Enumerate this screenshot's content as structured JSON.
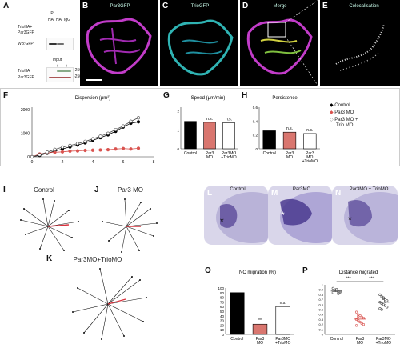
{
  "panels": {
    "A": {
      "label": "A",
      "ip_title": "IP:",
      "ip_cols": [
        "HA",
        "HA",
        "IgG"
      ],
      "row_labels": [
        "TrioHA+",
        "Par3GFP"
      ],
      "wb_label": "WB:GFP",
      "input_title": "Input",
      "input_signs": [
        "-",
        "+",
        "+"
      ],
      "input_rows": [
        "TrioHA",
        "Par3GFP"
      ],
      "markers": [
        "-250",
        "-250"
      ]
    },
    "B": {
      "label": "B",
      "title": "Par3GFP"
    },
    "C": {
      "label": "C",
      "title": "TrioGFP"
    },
    "D": {
      "label": "D",
      "title": "Merge"
    },
    "E": {
      "label": "E",
      "title": "Colocalisation"
    },
    "F": {
      "label": "F"
    },
    "G": {
      "label": "G"
    },
    "H": {
      "label": "H"
    },
    "I": {
      "label": "I",
      "title": "Control"
    },
    "J": {
      "label": "J",
      "title": "Par3 MO"
    },
    "K": {
      "label": "K",
      "title": "Par3MO+TrioMO"
    },
    "L": {
      "label": "L",
      "title": "Control",
      "star": "*"
    },
    "M": {
      "label": "M",
      "title": "Par3MO",
      "star": "*"
    },
    "N": {
      "label": "N",
      "title": "Par3MO + TrioMO",
      "star": "*"
    },
    "O": {
      "label": "O"
    },
    "P": {
      "label": "P"
    }
  },
  "legend_h": [
    {
      "text": "Control",
      "color": "#000000"
    },
    {
      "text": "Par3 MO",
      "color": "#d9534f"
    },
    {
      "text": "Par3 MO +",
      "color": "#888888"
    },
    {
      "text": "Trio MO",
      "color": "#888888"
    }
  ],
  "chart_data": [
    {
      "id": "F",
      "type": "line",
      "title": "Dispersion (μm²)",
      "xlabel": "",
      "ylabel": "",
      "x": [
        0,
        0.5,
        1,
        1.5,
        2,
        2.5,
        3,
        3.5,
        4,
        4.5,
        5,
        5.5,
        6,
        6.5,
        7
      ],
      "xticks": [
        "0",
        "2",
        "4",
        "6",
        "8"
      ],
      "yticks": [
        "0",
        "1000",
        "2000"
      ],
      "ylim": [
        0,
        2100
      ],
      "series": [
        {
          "values": [
            0,
            60,
            150,
            240,
            330,
            420,
            500,
            590,
            700,
            810,
            930,
            1080,
            1260,
            1420,
            1480
          ],
          "color": "#000000",
          "marker": "filled"
        },
        {
          "values": [
            0,
            120,
            170,
            190,
            210,
            240,
            250,
            270,
            280,
            290,
            300,
            330,
            350,
            330,
            360
          ],
          "color": "#d9534f",
          "marker": "filled"
        },
        {
          "values": [
            0,
            90,
            200,
            310,
            410,
            480,
            560,
            650,
            760,
            870,
            990,
            1150,
            1300,
            1500,
            1650
          ],
          "color": "#444444",
          "marker": "open"
        }
      ]
    },
    {
      "id": "G",
      "type": "bar",
      "title": "Speed (μm/min)",
      "categories": [
        "Control",
        "Par3 MO",
        "Par3MO +TrioMO"
      ],
      "values": [
        1.45,
        1.4,
        1.38
      ],
      "colors": [
        "#000000",
        "#d9766f",
        "#ffffff"
      ],
      "yticks": [
        "0",
        "1",
        "2"
      ],
      "ylim": [
        0,
        2.2
      ],
      "annotations": [
        "",
        "n.s.",
        "n.s."
      ]
    },
    {
      "id": "H",
      "type": "bar",
      "title": "Persistence",
      "categories": [
        "Control",
        "Par3 MO",
        "Par3 MO +TrioMO"
      ],
      "values": [
        0.26,
        0.24,
        0.22
      ],
      "colors": [
        "#000000",
        "#d9766f",
        "#ffffff"
      ],
      "yticks": [
        "0",
        "0.2",
        "0.4",
        "0.6"
      ],
      "ylim": [
        0,
        0.6
      ],
      "annotations": [
        "",
        "n.s.",
        "n.s."
      ]
    },
    {
      "id": "O",
      "type": "bar",
      "title": "NC migration (%)",
      "categories": [
        "Control",
        "Par3 MO",
        "Par3MO +TrioMO"
      ],
      "values": [
        90,
        22,
        60
      ],
      "colors": [
        "#000000",
        "#d9766f",
        "#ffffff"
      ],
      "yticks": [
        "0",
        "10",
        "20",
        "30",
        "40",
        "50",
        "60",
        "70",
        "80",
        "90",
        "100"
      ],
      "ylim": [
        0,
        100
      ],
      "annotations": [
        "",
        "**",
        "n.s."
      ]
    },
    {
      "id": "P",
      "type": "scatter",
      "title": "Distance migrated",
      "categories": [
        "Control",
        "Par3 MO",
        "Par3MO +TrioMO"
      ],
      "yticks": [
        "0",
        "0.1",
        "0.2",
        "0.3",
        "0.4",
        "0.5",
        "0.6",
        "0.7",
        "0.8",
        "0.9",
        "1"
      ],
      "ylim": [
        0,
        1
      ],
      "groups": [
        {
          "values": [
            0.93,
            0.9,
            0.88,
            0.86,
            0.85,
            0.84,
            0.88,
            0.91,
            0.82,
            0.87
          ],
          "color": "#555555"
        },
        {
          "values": [
            0.45,
            0.4,
            0.38,
            0.35,
            0.33,
            0.3,
            0.28,
            0.25,
            0.22,
            0.2,
            0.18,
            0.36
          ],
          "color": "#d9534f"
        },
        {
          "values": [
            0.8,
            0.76,
            0.72,
            0.7,
            0.68,
            0.65,
            0.62,
            0.6,
            0.58,
            0.55,
            0.52,
            0.5,
            0.74,
            0.66
          ],
          "color": "#444444"
        }
      ],
      "annotations": [
        "***",
        "***"
      ]
    }
  ]
}
